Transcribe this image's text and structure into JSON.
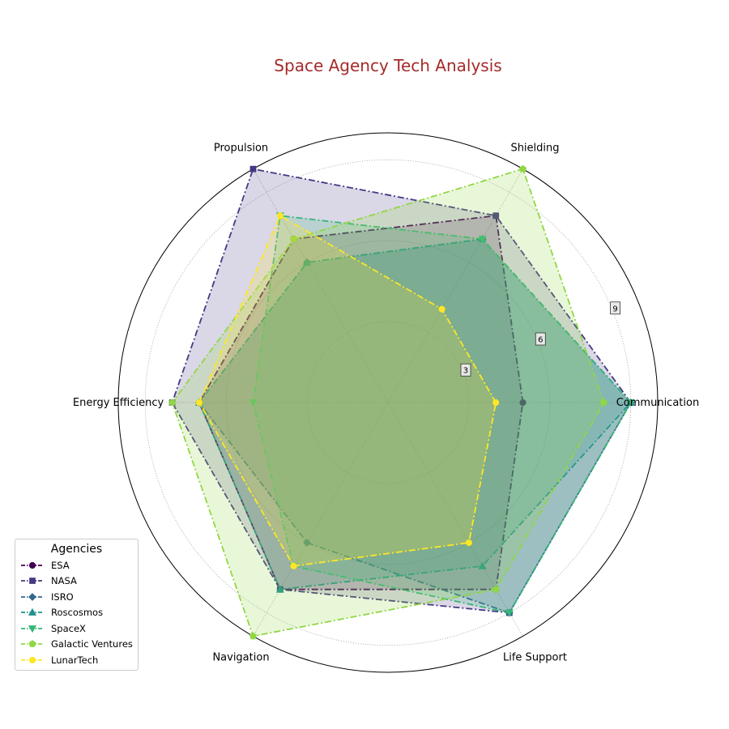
{
  "chart_data": {
    "type": "radar",
    "title": "Space Agency Tech Analysis",
    "axes": [
      "Communication",
      "Shielding",
      "Propulsion",
      "Energy Efficiency",
      "Navigation",
      "Life Support"
    ],
    "rlim": [
      0,
      10
    ],
    "rticks": [
      3,
      6,
      9
    ],
    "grid": true,
    "legend": {
      "title": "Agencies",
      "placement": "lower-left"
    },
    "series": [
      {
        "name": "ESA",
        "values": [
          5,
          8,
          7,
          7,
          8,
          8
        ],
        "color": "#440154",
        "marker": "circle"
      },
      {
        "name": "NASA",
        "values": [
          9,
          8,
          10,
          8,
          8,
          9
        ],
        "color": "#443983",
        "marker": "square"
      },
      {
        "name": "ISRO",
        "values": [
          9,
          7,
          6,
          7,
          6,
          9
        ],
        "color": "#31688e",
        "marker": "diamond"
      },
      {
        "name": "Roscosmos",
        "values": [
          9,
          7,
          6,
          7,
          8,
          7
        ],
        "color": "#21918c",
        "marker": "triangle-up"
      },
      {
        "name": "SpaceX",
        "values": [
          9,
          7,
          8,
          5,
          7,
          9
        ],
        "color": "#35b779",
        "marker": "triangle-down"
      },
      {
        "name": "Galactic Ventures",
        "values": [
          8,
          10,
          7,
          8,
          10,
          8
        ],
        "color": "#90d743",
        "marker": "pentagon"
      },
      {
        "name": "LunarTech",
        "values": [
          4,
          4,
          8,
          7,
          7,
          6
        ],
        "color": "#fde725",
        "marker": "circle"
      }
    ]
  }
}
